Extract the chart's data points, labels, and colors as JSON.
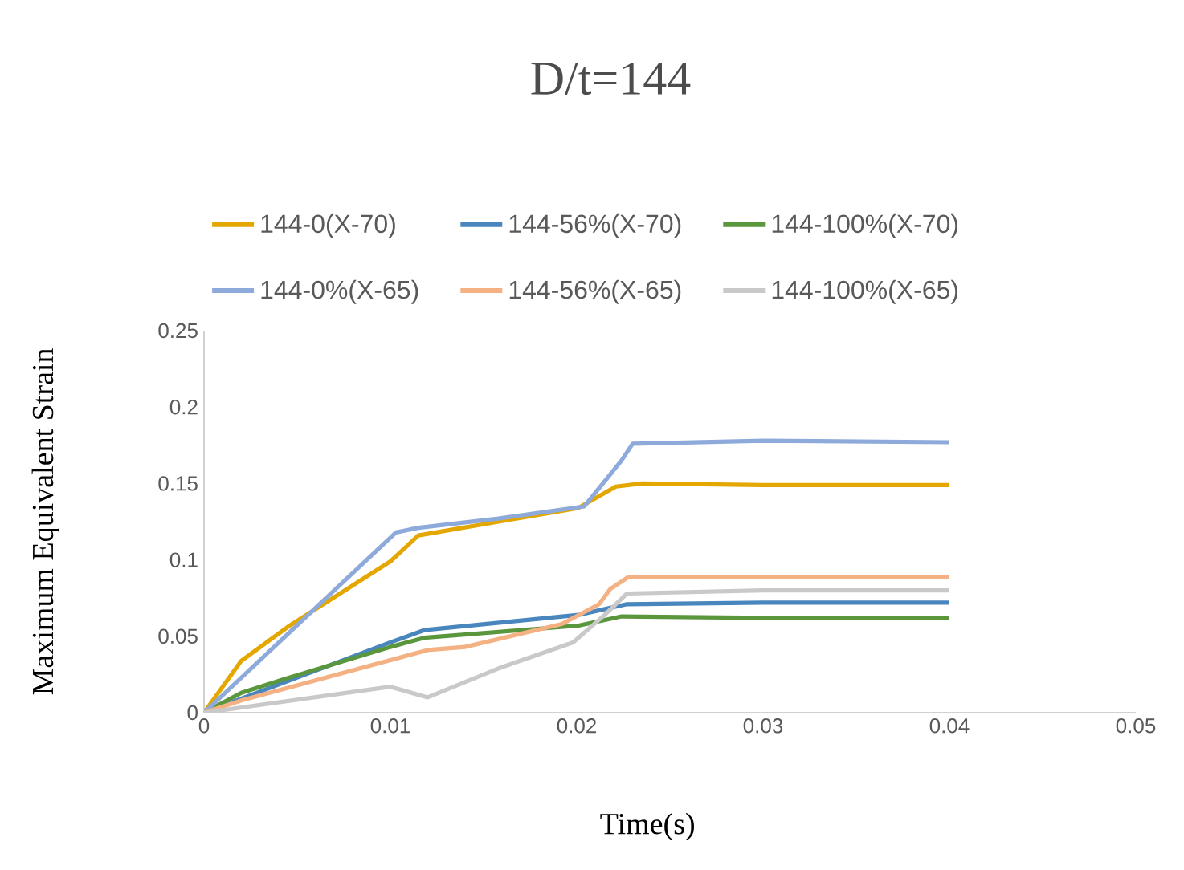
{
  "chart_data": {
    "type": "line",
    "title": "D/t=144",
    "xlabel": "Time(s)",
    "ylabel": "Maximum Equivalent Strain",
    "xlim": [
      0,
      0.05
    ],
    "ylim": [
      0,
      0.25
    ],
    "xticks": [
      0,
      0.01,
      0.02,
      0.03,
      0.04,
      0.05
    ],
    "yticks": [
      0,
      0.05,
      0.1,
      0.15,
      0.2,
      0.25
    ],
    "grid": false,
    "legend": "top",
    "marker": "none",
    "line_style": "solid",
    "series": [
      {
        "name": "144-0(X-70)",
        "color": "#e3a700",
        "x": [
          0,
          0.002,
          0.0046,
          0.01,
          0.0115,
          0.0158,
          0.0201,
          0.0221,
          0.0235,
          0.03,
          0.04
        ],
        "values": [
          0,
          0.034,
          0.057,
          0.099,
          0.116,
          0.125,
          0.134,
          0.148,
          0.15,
          0.149,
          0.149
        ]
      },
      {
        "name": "144-56%(X-70)",
        "color": "#4a86be",
        "x": [
          0,
          0.01,
          0.0118,
          0.0201,
          0.0227,
          0.03,
          0.04
        ],
        "values": [
          0,
          0.046,
          0.054,
          0.064,
          0.071,
          0.072,
          0.072
        ]
      },
      {
        "name": "144-100%(X-70)",
        "color": "#5a963c",
        "x": [
          0,
          0.002,
          0.0043,
          0.01,
          0.0118,
          0.0201,
          0.0224,
          0.03,
          0.04
        ],
        "values": [
          0,
          0.013,
          0.022,
          0.043,
          0.049,
          0.057,
          0.063,
          0.062,
          0.062
        ]
      },
      {
        "name": "144-0%(X-65)",
        "color": "#8eaadb",
        "x": [
          0,
          0.0103,
          0.0115,
          0.0158,
          0.0204,
          0.0224,
          0.023,
          0.03,
          0.04
        ],
        "values": [
          0,
          0.118,
          0.121,
          0.127,
          0.135,
          0.165,
          0.176,
          0.178,
          0.177
        ]
      },
      {
        "name": "144-56%(X-65)",
        "color": "#f4b183",
        "x": [
          0,
          0.002,
          0.012,
          0.014,
          0.0192,
          0.0212,
          0.0218,
          0.0228,
          0.03,
          0.04
        ],
        "values": [
          0,
          0.008,
          0.041,
          0.043,
          0.058,
          0.071,
          0.081,
          0.089,
          0.089,
          0.089
        ]
      },
      {
        "name": "144-100%(X-65)",
        "color": "#c9c9c9",
        "x": [
          0,
          0.01,
          0.012,
          0.0158,
          0.0198,
          0.0215,
          0.0227,
          0.03,
          0.04
        ],
        "values": [
          0,
          0.017,
          0.01,
          0.029,
          0.046,
          0.064,
          0.078,
          0.08,
          0.08
        ]
      }
    ]
  }
}
